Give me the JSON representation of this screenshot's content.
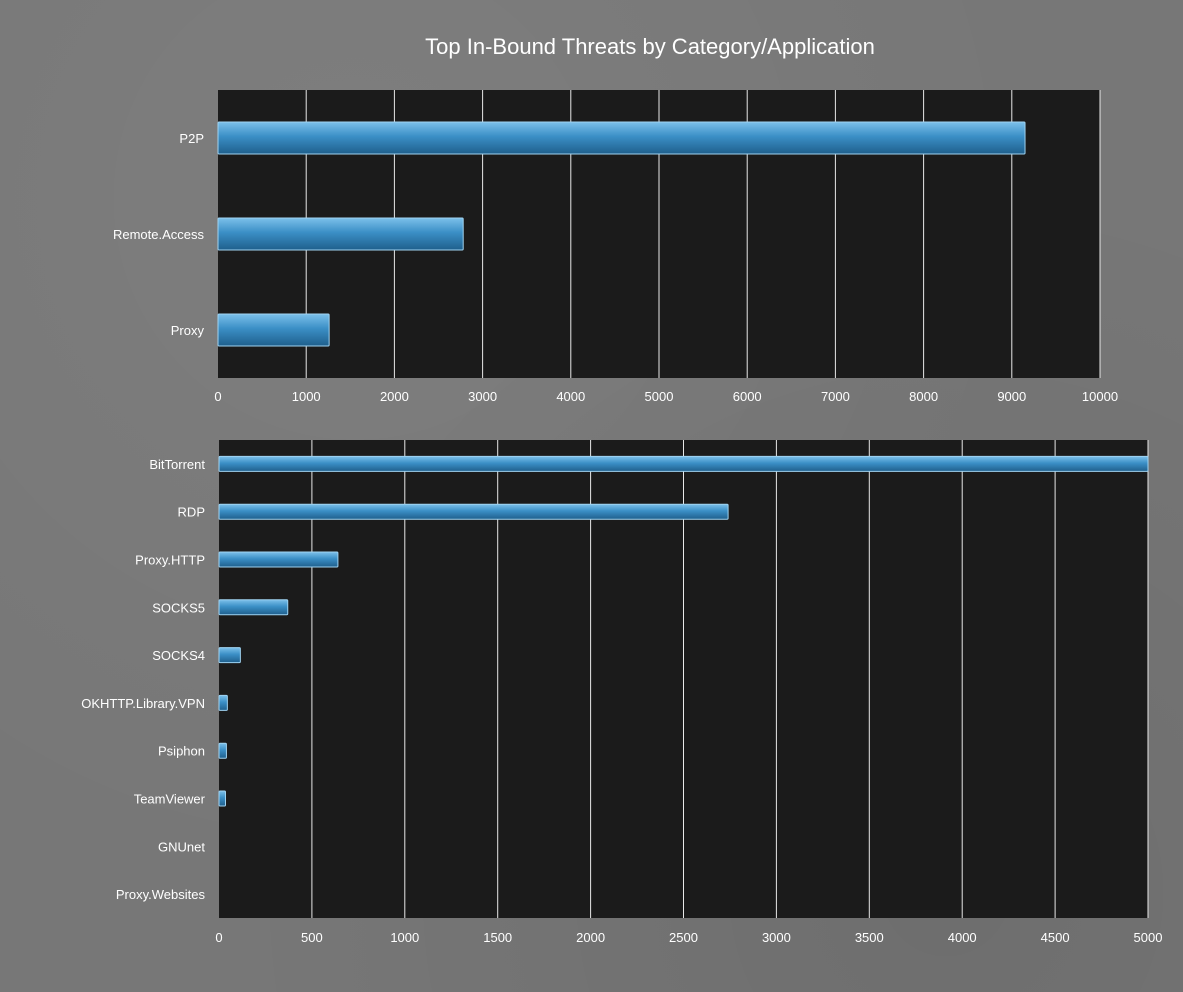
{
  "title": "Top In-Bound Threats by Category/Application",
  "colors": {
    "bar": "#3b8fc6",
    "bar_highlight": "#7cc0ea",
    "bar_shadow": "#1f5f8c",
    "plot_bg": "#1b1b1b",
    "grid": "#e8e8e8",
    "text": "#ffffff",
    "page_bg": "#777777"
  },
  "chart_data": [
    {
      "type": "bar",
      "orientation": "horizontal",
      "title": "Top In-Bound Threats by Category/Application",
      "categories": [
        "P2P",
        "Remote.Access",
        "Proxy"
      ],
      "values": [
        9150,
        2780,
        1260
      ],
      "xlim": [
        0,
        10000
      ],
      "xticks": [
        0,
        1000,
        2000,
        3000,
        4000,
        5000,
        6000,
        7000,
        8000,
        9000,
        10000
      ],
      "grid": "vertical"
    },
    {
      "type": "bar",
      "orientation": "horizontal",
      "categories": [
        "BitTorrent",
        "RDP",
        "Proxy.HTTP",
        "SOCKS5",
        "SOCKS4",
        "OKHTTP.Library.VPN",
        "Psiphon",
        "TeamViewer",
        "GNUnet",
        "Proxy.Websites"
      ],
      "values": [
        5000,
        2740,
        640,
        370,
        115,
        45,
        40,
        35,
        0,
        0
      ],
      "xlim": [
        0,
        5000
      ],
      "xticks": [
        0,
        500,
        1000,
        1500,
        2000,
        2500,
        3000,
        3500,
        4000,
        4500,
        5000
      ],
      "grid": "vertical"
    }
  ]
}
